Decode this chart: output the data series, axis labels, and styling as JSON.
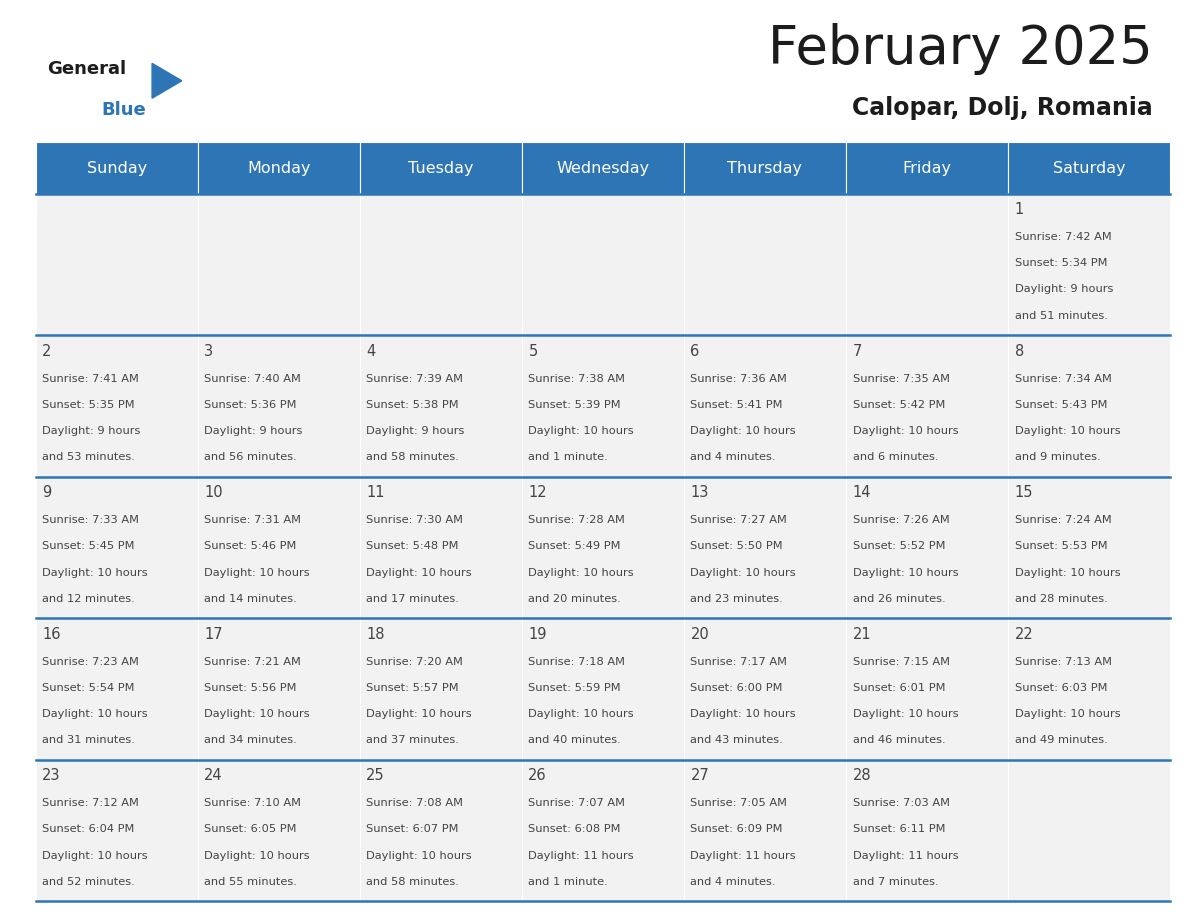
{
  "title": "February 2025",
  "subtitle": "Calopar, Dolj, Romania",
  "header_bg": "#2E75B6",
  "header_text_color": "#FFFFFF",
  "day_names": [
    "Sunday",
    "Monday",
    "Tuesday",
    "Wednesday",
    "Thursday",
    "Friday",
    "Saturday"
  ],
  "cell_bg": "#F2F2F2",
  "cell_border_color": "#2E75B6",
  "date_color": "#444444",
  "text_color": "#444444",
  "days": [
    {
      "date": 1,
      "col": 6,
      "row": 0,
      "sunrise": "7:42 AM",
      "sunset": "5:34 PM",
      "daylight_h": "9 hours",
      "daylight_m": "51 minutes"
    },
    {
      "date": 2,
      "col": 0,
      "row": 1,
      "sunrise": "7:41 AM",
      "sunset": "5:35 PM",
      "daylight_h": "9 hours",
      "daylight_m": "53 minutes"
    },
    {
      "date": 3,
      "col": 1,
      "row": 1,
      "sunrise": "7:40 AM",
      "sunset": "5:36 PM",
      "daylight_h": "9 hours",
      "daylight_m": "56 minutes"
    },
    {
      "date": 4,
      "col": 2,
      "row": 1,
      "sunrise": "7:39 AM",
      "sunset": "5:38 PM",
      "daylight_h": "9 hours",
      "daylight_m": "58 minutes"
    },
    {
      "date": 5,
      "col": 3,
      "row": 1,
      "sunrise": "7:38 AM",
      "sunset": "5:39 PM",
      "daylight_h": "10 hours",
      "daylight_m": "1 minute"
    },
    {
      "date": 6,
      "col": 4,
      "row": 1,
      "sunrise": "7:36 AM",
      "sunset": "5:41 PM",
      "daylight_h": "10 hours",
      "daylight_m": "4 minutes"
    },
    {
      "date": 7,
      "col": 5,
      "row": 1,
      "sunrise": "7:35 AM",
      "sunset": "5:42 PM",
      "daylight_h": "10 hours",
      "daylight_m": "6 minutes"
    },
    {
      "date": 8,
      "col": 6,
      "row": 1,
      "sunrise": "7:34 AM",
      "sunset": "5:43 PM",
      "daylight_h": "10 hours",
      "daylight_m": "9 minutes"
    },
    {
      "date": 9,
      "col": 0,
      "row": 2,
      "sunrise": "7:33 AM",
      "sunset": "5:45 PM",
      "daylight_h": "10 hours",
      "daylight_m": "12 minutes"
    },
    {
      "date": 10,
      "col": 1,
      "row": 2,
      "sunrise": "7:31 AM",
      "sunset": "5:46 PM",
      "daylight_h": "10 hours",
      "daylight_m": "14 minutes"
    },
    {
      "date": 11,
      "col": 2,
      "row": 2,
      "sunrise": "7:30 AM",
      "sunset": "5:48 PM",
      "daylight_h": "10 hours",
      "daylight_m": "17 minutes"
    },
    {
      "date": 12,
      "col": 3,
      "row": 2,
      "sunrise": "7:28 AM",
      "sunset": "5:49 PM",
      "daylight_h": "10 hours",
      "daylight_m": "20 minutes"
    },
    {
      "date": 13,
      "col": 4,
      "row": 2,
      "sunrise": "7:27 AM",
      "sunset": "5:50 PM",
      "daylight_h": "10 hours",
      "daylight_m": "23 minutes"
    },
    {
      "date": 14,
      "col": 5,
      "row": 2,
      "sunrise": "7:26 AM",
      "sunset": "5:52 PM",
      "daylight_h": "10 hours",
      "daylight_m": "26 minutes"
    },
    {
      "date": 15,
      "col": 6,
      "row": 2,
      "sunrise": "7:24 AM",
      "sunset": "5:53 PM",
      "daylight_h": "10 hours",
      "daylight_m": "28 minutes"
    },
    {
      "date": 16,
      "col": 0,
      "row": 3,
      "sunrise": "7:23 AM",
      "sunset": "5:54 PM",
      "daylight_h": "10 hours",
      "daylight_m": "31 minutes"
    },
    {
      "date": 17,
      "col": 1,
      "row": 3,
      "sunrise": "7:21 AM",
      "sunset": "5:56 PM",
      "daylight_h": "10 hours",
      "daylight_m": "34 minutes"
    },
    {
      "date": 18,
      "col": 2,
      "row": 3,
      "sunrise": "7:20 AM",
      "sunset": "5:57 PM",
      "daylight_h": "10 hours",
      "daylight_m": "37 minutes"
    },
    {
      "date": 19,
      "col": 3,
      "row": 3,
      "sunrise": "7:18 AM",
      "sunset": "5:59 PM",
      "daylight_h": "10 hours",
      "daylight_m": "40 minutes"
    },
    {
      "date": 20,
      "col": 4,
      "row": 3,
      "sunrise": "7:17 AM",
      "sunset": "6:00 PM",
      "daylight_h": "10 hours",
      "daylight_m": "43 minutes"
    },
    {
      "date": 21,
      "col": 5,
      "row": 3,
      "sunrise": "7:15 AM",
      "sunset": "6:01 PM",
      "daylight_h": "10 hours",
      "daylight_m": "46 minutes"
    },
    {
      "date": 22,
      "col": 6,
      "row": 3,
      "sunrise": "7:13 AM",
      "sunset": "6:03 PM",
      "daylight_h": "10 hours",
      "daylight_m": "49 minutes"
    },
    {
      "date": 23,
      "col": 0,
      "row": 4,
      "sunrise": "7:12 AM",
      "sunset": "6:04 PM",
      "daylight_h": "10 hours",
      "daylight_m": "52 minutes"
    },
    {
      "date": 24,
      "col": 1,
      "row": 4,
      "sunrise": "7:10 AM",
      "sunset": "6:05 PM",
      "daylight_h": "10 hours",
      "daylight_m": "55 minutes"
    },
    {
      "date": 25,
      "col": 2,
      "row": 4,
      "sunrise": "7:08 AM",
      "sunset": "6:07 PM",
      "daylight_h": "10 hours",
      "daylight_m": "58 minutes"
    },
    {
      "date": 26,
      "col": 3,
      "row": 4,
      "sunrise": "7:07 AM",
      "sunset": "6:08 PM",
      "daylight_h": "11 hours",
      "daylight_m": "1 minute"
    },
    {
      "date": 27,
      "col": 4,
      "row": 4,
      "sunrise": "7:05 AM",
      "sunset": "6:09 PM",
      "daylight_h": "11 hours",
      "daylight_m": "4 minutes"
    },
    {
      "date": 28,
      "col": 5,
      "row": 4,
      "sunrise": "7:03 AM",
      "sunset": "6:11 PM",
      "daylight_h": "11 hours",
      "daylight_m": "7 minutes"
    }
  ]
}
